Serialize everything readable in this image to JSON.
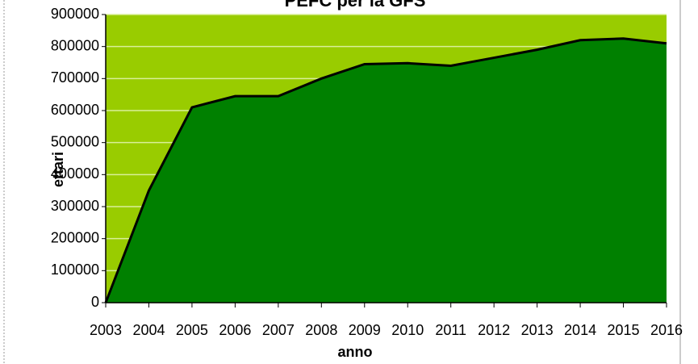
{
  "chart_data": {
    "type": "area",
    "title": "PEFC per la GFS",
    "xlabel": "anno",
    "ylabel": "ettari",
    "categories": [
      "2003",
      "2004",
      "2005",
      "2006",
      "2007",
      "2008",
      "2009",
      "2010",
      "2011",
      "2012",
      "2013",
      "2014",
      "2015",
      "2016"
    ],
    "values": [
      0,
      350000,
      610000,
      645000,
      645000,
      700000,
      745000,
      748000,
      740000,
      765000,
      790000,
      820000,
      825000,
      810000
    ],
    "color": "#008000",
    "background": "#99cc00",
    "ylim": [
      0,
      900000
    ],
    "yticks": [
      0,
      100000,
      200000,
      300000,
      400000,
      500000,
      600000,
      700000,
      800000,
      900000
    ],
    "grid": true
  }
}
